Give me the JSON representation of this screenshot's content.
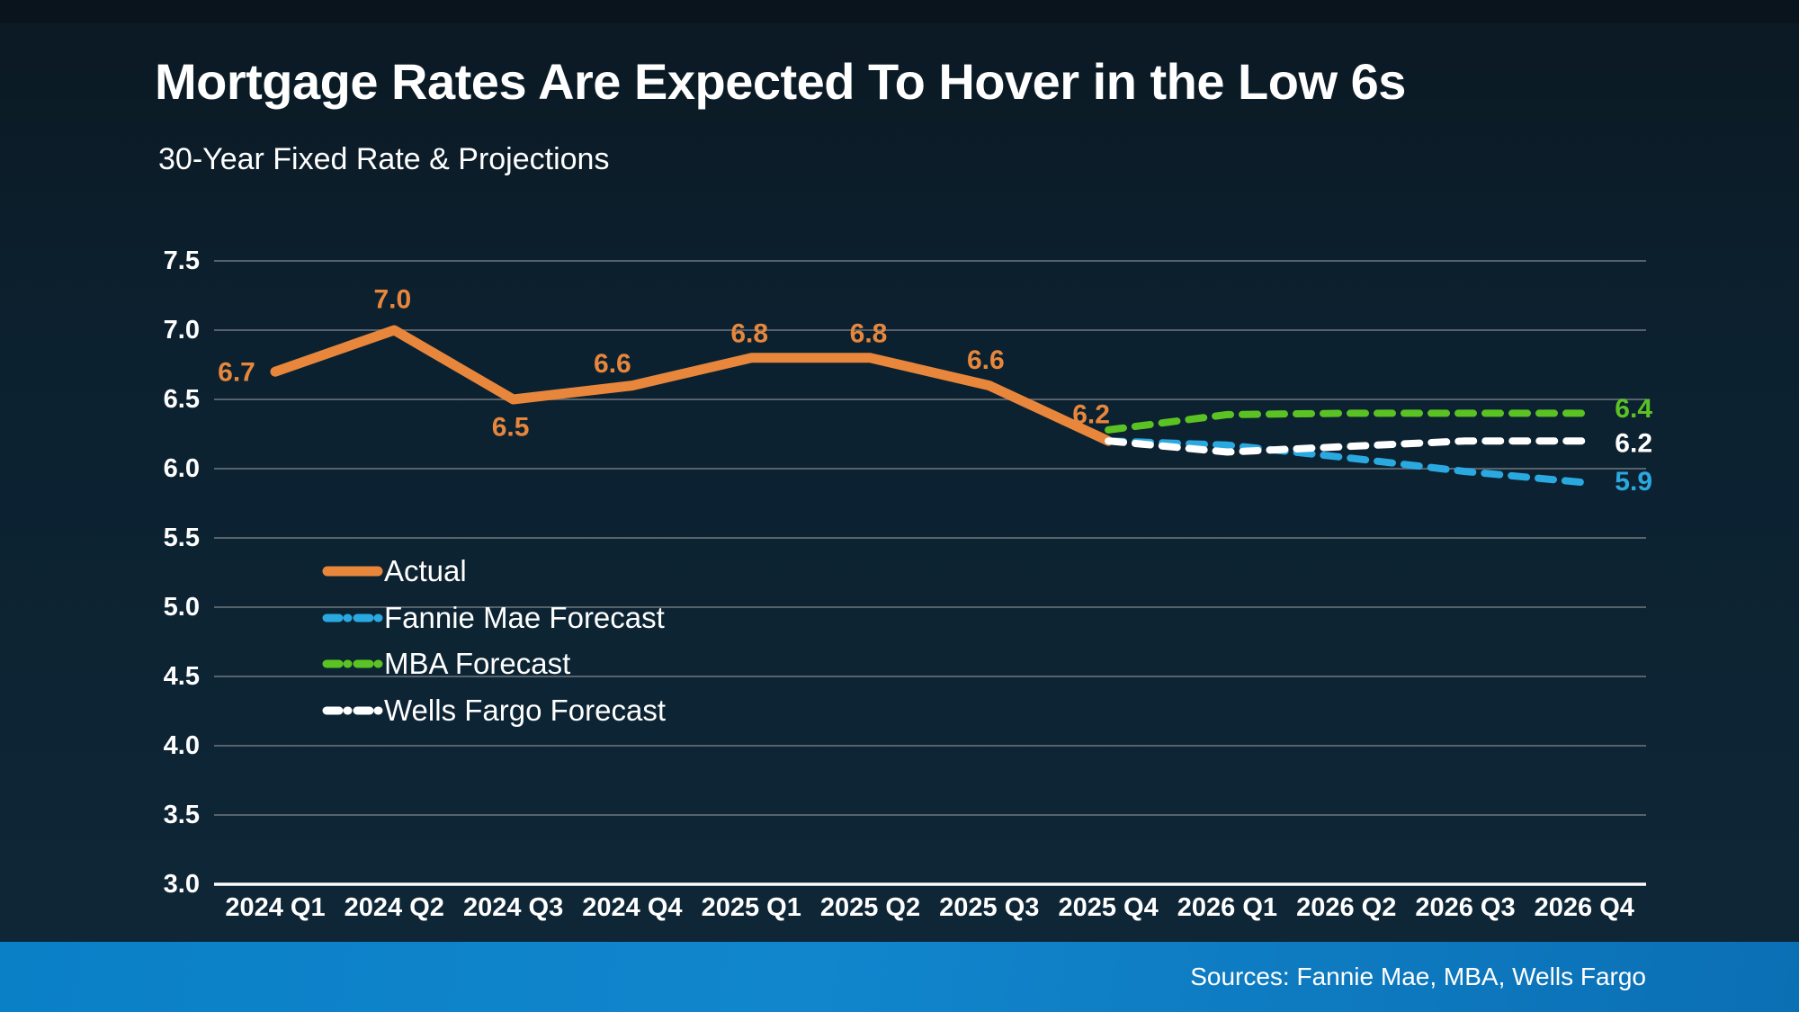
{
  "header": {
    "title": "Mortgage Rates Are Expected To Hover in the Low 6s",
    "subtitle": "30-Year Fixed Rate & Projections"
  },
  "footer": {
    "sources": "Sources: Fannie Mae, MBA, Wells Fargo"
  },
  "colors": {
    "background_top": "#0b1923",
    "background_bottom": "#0e2737",
    "gridline": "#57626c",
    "axis_line": "#ffffff",
    "tick_text": "#ffffff",
    "actual": "#e8873c",
    "fannie_mae": "#2aa9e1",
    "mba": "#5bc224",
    "wells_fargo": "#ffffff",
    "footer_bar": "#0a80c7"
  },
  "chart_data": {
    "type": "line",
    "title": "Mortgage Rates Are Expected To Hover in the Low 6s",
    "subtitle": "30-Year Fixed Rate & Projections",
    "xlabel": "",
    "ylabel": "",
    "ylim": [
      3.0,
      7.5
    ],
    "ytick_step": 0.5,
    "grid": true,
    "legend_position": "inside-left",
    "ytick_labels": [
      "7.5",
      "7.0",
      "6.5",
      "6.0",
      "5.5",
      "5.0",
      "4.5",
      "4.0",
      "3.5",
      "3.0"
    ],
    "categories": [
      "2024 Q1",
      "2024 Q2",
      "2024 Q3",
      "2024 Q4",
      "2025 Q1",
      "2025 Q2",
      "2025 Q3",
      "2025 Q4",
      "2026 Q1",
      "2026 Q2",
      "2026 Q3",
      "2026 Q4"
    ],
    "series": [
      {
        "name": "Actual",
        "color": "#e8873c",
        "style": "solid",
        "start_index": 0,
        "values": [
          6.7,
          7.0,
          6.5,
          6.6,
          6.8,
          6.8,
          6.6,
          6.2
        ],
        "point_labels": [
          "6.7",
          "7.0",
          "6.5",
          "6.6",
          "6.8",
          "6.8",
          "6.6",
          "6.2"
        ]
      },
      {
        "name": "Fannie Mae Forecast",
        "color": "#2aa9e1",
        "style": "dashed",
        "start_index": 7,
        "values": [
          6.2,
          6.17,
          6.08,
          5.98,
          5.9
        ],
        "end_label": "5.9"
      },
      {
        "name": "MBA Forecast",
        "color": "#5bc224",
        "style": "dashed",
        "start_index": 7,
        "values": [
          6.28,
          6.39,
          6.4,
          6.4,
          6.4
        ],
        "end_label": "6.4"
      },
      {
        "name": "Wells Fargo Forecast",
        "color": "#ffffff",
        "style": "dashed",
        "start_index": 7,
        "values": [
          6.2,
          6.12,
          6.16,
          6.2,
          6.2
        ],
        "end_label": "6.2"
      }
    ],
    "legend": [
      {
        "label": "Actual",
        "color": "#e8873c",
        "style": "solid"
      },
      {
        "label": "Fannie Mae Forecast",
        "color": "#2aa9e1",
        "style": "dashed"
      },
      {
        "label": "MBA Forecast",
        "color": "#5bc224",
        "style": "dashed"
      },
      {
        "label": "Wells Fargo Forecast",
        "color": "#ffffff",
        "style": "dashed"
      }
    ]
  }
}
